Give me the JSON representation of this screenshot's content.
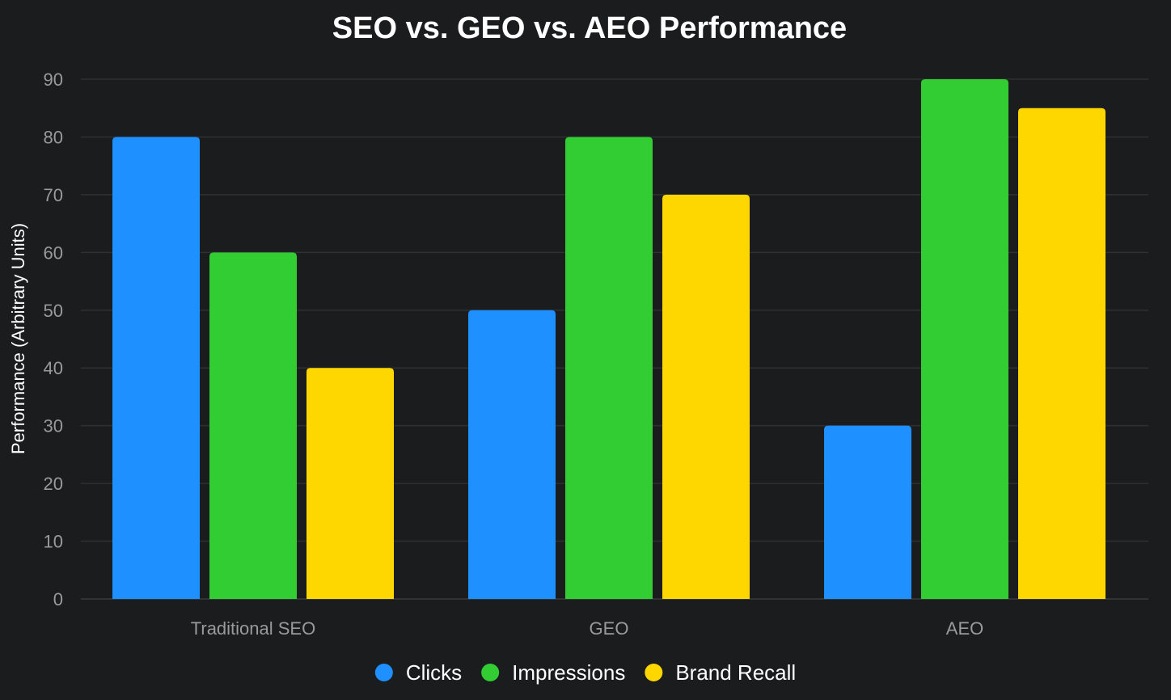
{
  "chart_data": {
    "type": "bar",
    "title": "SEO vs. GEO vs. AEO Performance",
    "xlabel": "",
    "ylabel": "Performance (Arbitrary Units)",
    "categories": [
      "Traditional SEO",
      "GEO",
      "AEO"
    ],
    "series": [
      {
        "name": "Clicks",
        "color": "#1e90ff",
        "values": [
          80,
          50,
          30
        ]
      },
      {
        "name": "Impressions",
        "color": "#32cd32",
        "values": [
          60,
          80,
          90
        ]
      },
      {
        "name": "Brand Recall",
        "color": "#ffd700",
        "values": [
          40,
          70,
          85
        ]
      }
    ],
    "ylim": [
      0,
      90
    ],
    "yticks": [
      0,
      10,
      20,
      30,
      40,
      50,
      60,
      70,
      80,
      90
    ],
    "grid": true,
    "legend_position": "bottom-center"
  },
  "colors": {
    "background": "#1b1c1e",
    "grid": "#2f3033",
    "tick_text": "#9a9a9a",
    "text": "#ffffff"
  }
}
